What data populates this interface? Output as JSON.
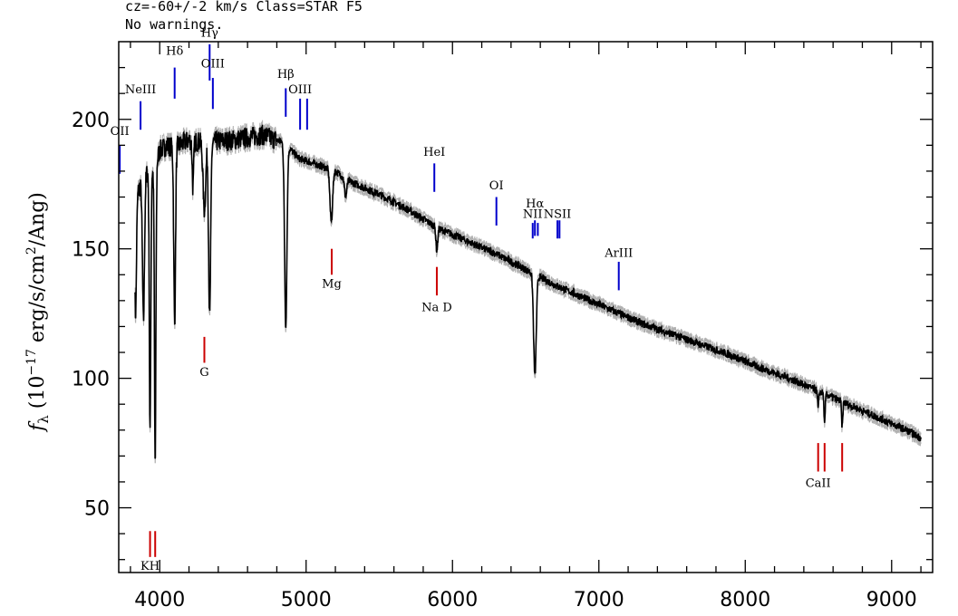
{
  "header": {
    "line1": "cz=-60+/-2 km/s Class=STAR F5",
    "line2": "No warnings."
  },
  "chart_data": {
    "type": "line",
    "title": "",
    "xlabel": "",
    "ylabel_parts": [
      "f",
      "λ",
      " (10",
      "−17",
      " erg/s/cm",
      "2",
      "/Ang)"
    ],
    "xlim": [
      3720,
      9280
    ],
    "ylim": [
      25,
      230
    ],
    "xticks": [
      4000,
      5000,
      6000,
      7000,
      8000,
      9000
    ],
    "xtick_labels": [
      "4000",
      "5000",
      "6000",
      "7000",
      "8000",
      "9000"
    ],
    "yticks": [
      50,
      100,
      150,
      200
    ],
    "ytick_labels": [
      "50",
      "100",
      "150",
      "200"
    ],
    "grid": false,
    "continuum": [
      [
        3830,
        169
      ],
      [
        3900,
        179
      ],
      [
        3960,
        180
      ],
      [
        4000,
        188
      ],
      [
        4050,
        190
      ],
      [
        4100,
        189
      ],
      [
        4200,
        192
      ],
      [
        4300,
        191
      ],
      [
        4500,
        192
      ],
      [
        4700,
        194
      ],
      [
        4850,
        191
      ],
      [
        4950,
        185
      ],
      [
        5100,
        182
      ],
      [
        5200,
        180
      ],
      [
        5300,
        176
      ],
      [
        5500,
        171
      ],
      [
        5700,
        165
      ],
      [
        5900,
        158
      ],
      [
        6100,
        153
      ],
      [
        6300,
        148
      ],
      [
        6500,
        142
      ],
      [
        6700,
        136
      ],
      [
        6900,
        131
      ],
      [
        7100,
        126
      ],
      [
        7300,
        121
      ],
      [
        7500,
        117
      ],
      [
        7700,
        113
      ],
      [
        7900,
        109
      ],
      [
        8100,
        104
      ],
      [
        8300,
        100
      ],
      [
        8500,
        95
      ],
      [
        8700,
        90
      ],
      [
        8900,
        85
      ],
      [
        9100,
        80
      ],
      [
        9200,
        77
      ]
    ],
    "absorption": [
      {
        "center": 3835,
        "depth": 45,
        "width": 6
      },
      {
        "center": 3889,
        "depth": 55,
        "width": 7
      },
      {
        "center": 3934,
        "depth": 100,
        "width": 5
      },
      {
        "center": 3969,
        "depth": 115,
        "width": 5
      },
      {
        "center": 4102,
        "depth": 68,
        "width": 6
      },
      {
        "center": 4227,
        "depth": 18,
        "width": 5
      },
      {
        "center": 4305,
        "depth": 26,
        "width": 9
      },
      {
        "center": 4341,
        "depth": 68,
        "width": 7
      },
      {
        "center": 4861,
        "depth": 70,
        "width": 8
      },
      {
        "center": 5172,
        "depth": 20,
        "width": 9
      },
      {
        "center": 5270,
        "depth": 7,
        "width": 8
      },
      {
        "center": 5893,
        "depth": 9,
        "width": 6
      },
      {
        "center": 6563,
        "depth": 39,
        "width": 9
      },
      {
        "center": 8498,
        "depth": 7,
        "width": 4
      },
      {
        "center": 8542,
        "depth": 12,
        "width": 4
      },
      {
        "center": 8662,
        "depth": 10,
        "width": 4
      }
    ],
    "emission_lines": [
      {
        "label": "OII",
        "wave": 3727,
        "ymin": 179,
        "ymax": 190,
        "label_y": 194
      },
      {
        "label": "NeIII",
        "wave": 3869,
        "ymin": 196,
        "ymax": 207,
        "label_y": 210
      },
      {
        "label": "Hδ",
        "wave": 4102,
        "ymin": 208,
        "ymax": 220,
        "label_y": 225
      },
      {
        "label": "Hγ",
        "wave": 4341,
        "ymin": 215,
        "ymax": 229,
        "label_y": 232
      },
      {
        "label": "OIII",
        "wave": 4363,
        "ymin": 204,
        "ymax": 216,
        "label_y": 220
      },
      {
        "label": "Hβ",
        "wave": 4861,
        "ymin": 201,
        "ymax": 212,
        "label_y": 216
      },
      {
        "label": "OIII",
        "wave": 4959,
        "ymin": 196,
        "ymax": 208,
        "label_y": 210
      },
      {
        "label": "",
        "wave": 5007,
        "ymin": 196,
        "ymax": 208,
        "label_y": 210
      },
      {
        "label": "HeI",
        "wave": 5876,
        "ymin": 172,
        "ymax": 183,
        "label_y": 186
      },
      {
        "label": "OI",
        "wave": 6300,
        "ymin": 159,
        "ymax": 170,
        "label_y": 173
      },
      {
        "label": "NII",
        "wave": 6548,
        "ymin": 154,
        "ymax": 160,
        "label_y": 162
      },
      {
        "label": "Hα",
        "wave": 6563,
        "ymin": 155,
        "ymax": 161,
        "label_y": 166
      },
      {
        "label": "",
        "wave": 6583,
        "ymin": 155,
        "ymax": 160,
        "label_y": 162
      },
      {
        "label": "NSII",
        "wave": 6717,
        "ymin": 154,
        "ymax": 161,
        "label_y": 162
      },
      {
        "label": "",
        "wave": 6731,
        "ymin": 154,
        "ymax": 161,
        "label_y": 162
      },
      {
        "label": "ArIII",
        "wave": 7136,
        "ymin": 134,
        "ymax": 145,
        "label_y": 147
      }
    ],
    "absorption_markers": [
      {
        "label": "KH",
        "wave": 3934,
        "ymin": 31,
        "ymax": 41,
        "label_y": 26
      },
      {
        "label": "",
        "wave": 3969,
        "ymin": 31,
        "ymax": 41,
        "label_y": 26
      },
      {
        "label": "G",
        "wave": 4305,
        "ymin": 106,
        "ymax": 116,
        "label_y": 101
      },
      {
        "label": "Mg",
        "wave": 5175,
        "ymin": 140,
        "ymax": 150,
        "label_y": 135
      },
      {
        "label": "Na D",
        "wave": 5893,
        "ymin": 132,
        "ymax": 143,
        "label_y": 126
      },
      {
        "label": "CaII",
        "wave": 8498,
        "ymin": 64,
        "ymax": 75,
        "label_y": 58
      },
      {
        "label": "",
        "wave": 8542,
        "ymin": 64,
        "ymax": 75,
        "label_y": 58
      },
      {
        "label": "",
        "wave": 8662,
        "ymin": 64,
        "ymax": 75,
        "label_y": 58
      }
    ],
    "colors": {
      "spectrum": "#000000",
      "error": "#b0b0b0",
      "emission": "#0000cc",
      "absorption": "#cc0000"
    }
  }
}
